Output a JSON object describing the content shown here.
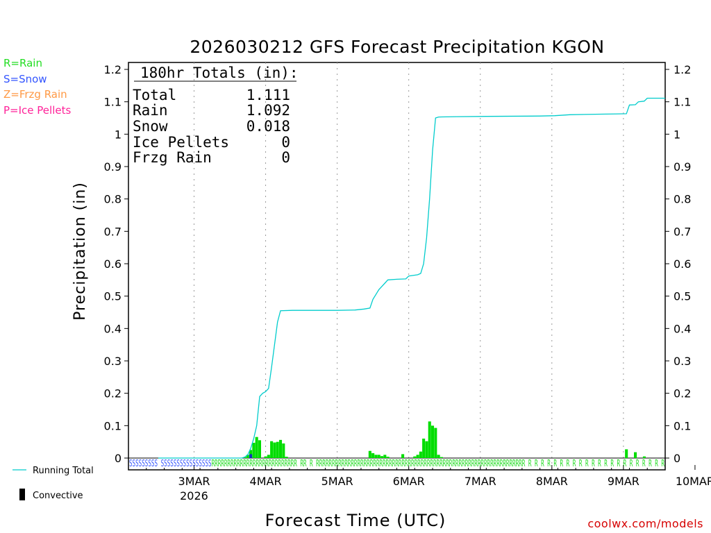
{
  "chart_data": {
    "type": "bar",
    "title": "2026030212 GFS Forecast Precipitation KGON",
    "ylabel": "Precipitation (in)",
    "xlabel": "Forecast Time (UTC)",
    "ylim": [
      0,
      1.25
    ],
    "y_ticks": [
      "0",
      "0.1",
      "0.2",
      "0.3",
      "0.4",
      "0.5",
      "0.6",
      "0.7",
      "0.8",
      "0.9",
      "1",
      "1.1",
      "1.2"
    ],
    "x_hours_range": [
      -10,
      170
    ],
    "x_ticks": [
      {
        "hour": 12,
        "label": "3MAR",
        "sub": "2026"
      },
      {
        "hour": 36,
        "label": "4MAR"
      },
      {
        "hour": 60,
        "label": "5MAR"
      },
      {
        "hour": 84,
        "label": "6MAR"
      },
      {
        "hour": 108,
        "label": "7MAR"
      },
      {
        "hour": 132,
        "label": "8MAR"
      },
      {
        "hour": 156,
        "label": "9MAR"
      },
      {
        "hour": 180,
        "label": "10MAR"
      }
    ],
    "type_legend": [
      {
        "text": "R=Rain",
        "color": "#22dd22"
      },
      {
        "text": "S=Snow",
        "color": "#3355ff"
      },
      {
        "text": "Z=Frzg Rain",
        "color": "#ff9944"
      },
      {
        "text": "P=Ice Pellets",
        "color": "#ff2299"
      }
    ],
    "totals": {
      "header": "180hr Totals (in):",
      "rows": [
        {
          "label": "Total",
          "value": "1.111"
        },
        {
          "label": "Rain",
          "value": "1.092"
        },
        {
          "label": "Snow",
          "value": "0.018"
        },
        {
          "label": "Ice Pellets",
          "value": "0"
        },
        {
          "label": "Frzg Rain",
          "value": "0"
        }
      ]
    },
    "series": [
      {
        "name": "Running Total",
        "color": "#00cccc",
        "points": [
          [
            0,
            0
          ],
          [
            28,
            0
          ],
          [
            29,
            0.003
          ],
          [
            30,
            0.01
          ],
          [
            31,
            0.03
          ],
          [
            32,
            0.06
          ],
          [
            33,
            0.1
          ],
          [
            34,
            0.19
          ],
          [
            35,
            0.2
          ],
          [
            36,
            0.205
          ],
          [
            37,
            0.215
          ],
          [
            38,
            0.28
          ],
          [
            39,
            0.35
          ],
          [
            40,
            0.42
          ],
          [
            41,
            0.455
          ],
          [
            45,
            0.456
          ],
          [
            60,
            0.456
          ],
          [
            66,
            0.457
          ],
          [
            69,
            0.46
          ],
          [
            71,
            0.463
          ],
          [
            72,
            0.49
          ],
          [
            73,
            0.505
          ],
          [
            74,
            0.52
          ],
          [
            75,
            0.53
          ],
          [
            76,
            0.54
          ],
          [
            77,
            0.55
          ],
          [
            80,
            0.552
          ],
          [
            83,
            0.553
          ],
          [
            84,
            0.562
          ],
          [
            87,
            0.566
          ],
          [
            88,
            0.57
          ],
          [
            89,
            0.6
          ],
          [
            90,
            0.68
          ],
          [
            91,
            0.8
          ],
          [
            92,
            0.95
          ],
          [
            93,
            1.05
          ],
          [
            94,
            1.053
          ],
          [
            100,
            1.054
          ],
          [
            110,
            1.055
          ],
          [
            128,
            1.056
          ],
          [
            133,
            1.057
          ],
          [
            138,
            1.06
          ],
          [
            143,
            1.061
          ],
          [
            150,
            1.062
          ],
          [
            157,
            1.063
          ],
          [
            158,
            1.09
          ],
          [
            160,
            1.091
          ],
          [
            161,
            1.1
          ],
          [
            163,
            1.102
          ],
          [
            164,
            1.111
          ],
          [
            170,
            1.111
          ]
        ]
      },
      {
        "name": "Convective",
        "color": "#00dd00",
        "bars": [
          [
            29,
            0.003
          ],
          [
            30,
            0.01
          ],
          [
            31,
            0.025
          ],
          [
            32,
            0.047
          ],
          [
            33,
            0.065
          ],
          [
            34,
            0.055
          ],
          [
            36,
            0.005
          ],
          [
            37,
            0.01
          ],
          [
            38,
            0.052
          ],
          [
            39,
            0.048
          ],
          [
            40,
            0.05
          ],
          [
            41,
            0.056
          ],
          [
            42,
            0.045
          ],
          [
            43,
            0.004
          ],
          [
            71,
            0.022
          ],
          [
            72,
            0.015
          ],
          [
            73,
            0.01
          ],
          [
            74,
            0.01
          ],
          [
            75,
            0.006
          ],
          [
            76,
            0.01
          ],
          [
            77,
            0.004
          ],
          [
            82,
            0.012
          ],
          [
            86,
            0.005
          ],
          [
            87,
            0.01
          ],
          [
            88,
            0.02
          ],
          [
            89,
            0.06
          ],
          [
            90,
            0.052
          ],
          [
            91,
            0.113
          ],
          [
            92,
            0.1
          ],
          [
            93,
            0.093
          ],
          [
            94,
            0.01
          ],
          [
            95,
            0.003
          ],
          [
            157,
            0.027
          ],
          [
            160,
            0.018
          ],
          [
            163,
            0.005
          ]
        ],
        "snow_bar": [
          31,
          0.012
        ]
      }
    ],
    "precip_types": "SSSSSSSSS SSSSSSSSSSSSSSSSRRRRRRRRRRRRRRRRRRRRRRRRRRR RR R RRRRRRRRRRRRRRRRRRRRRRRRRRRRRRRRRRRRRRRRRRRRRRRRRRRRRRRRRRRRRRRRRR R R R R R R R R R R R R R R R R R R R R R R"
  },
  "footer": {
    "running_total_label": "Running Total",
    "convective_label": "Convective",
    "credit": "coolwx.com/models"
  }
}
